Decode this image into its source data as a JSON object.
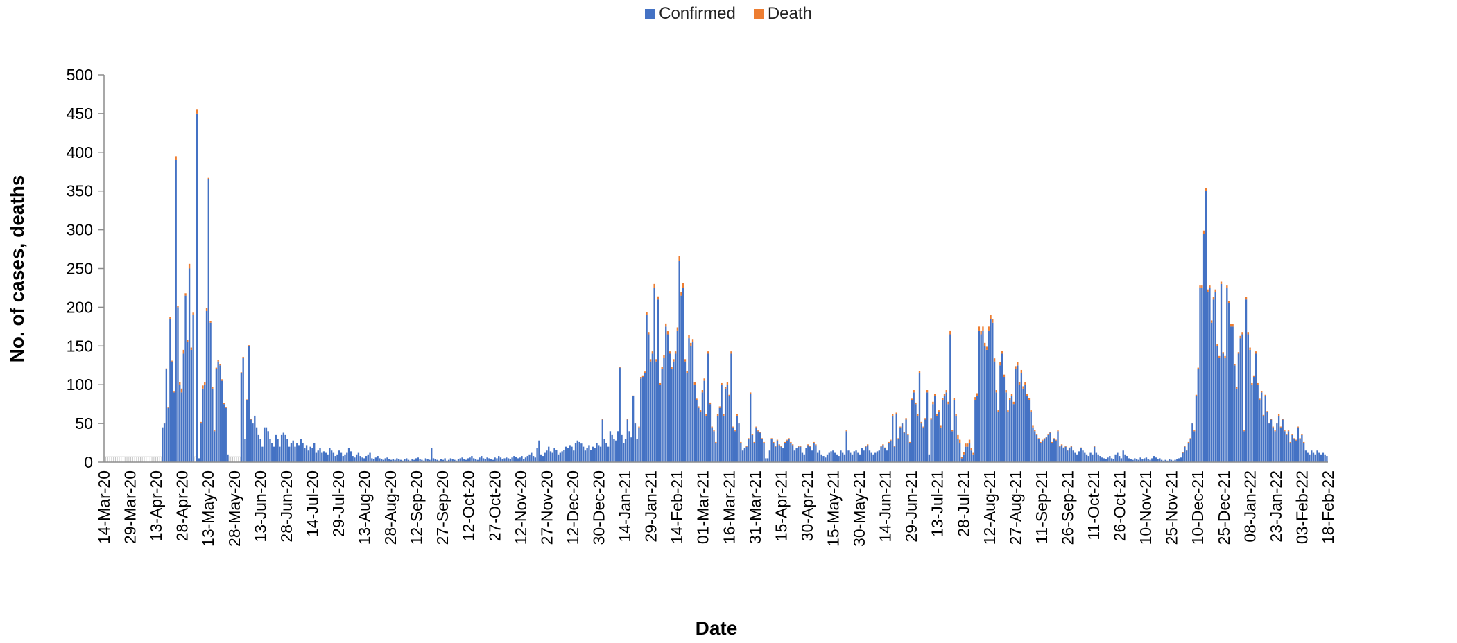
{
  "chart_data": {
    "type": "bar",
    "stacked": true,
    "xlabel": "Date",
    "ylabel": "No. of cases, deaths",
    "ylim": [
      0,
      500
    ],
    "yticks": [
      0,
      50,
      100,
      150,
      200,
      250,
      300,
      350,
      400,
      450,
      500
    ],
    "legend_position": "top-center",
    "grid": false,
    "series": [
      {
        "name": "Confirmed",
        "color": "#4472C4"
      },
      {
        "name": "Death",
        "color": "#ED7D31"
      }
    ],
    "x_tick_labels": [
      "14-Mar-20",
      "29-Mar-20",
      "13-Apr-20",
      "28-Apr-20",
      "13-May-20",
      "28-May-20",
      "13-Jun-20",
      "28-Jun-20",
      "14-Jul-20",
      "29-Jul-20",
      "13-Aug-20",
      "28-Aug-20",
      "12-Sep-20",
      "27-Sep-20",
      "12-Oct-20",
      "27-Oct-20",
      "12-Nov-20",
      "27-Nov-20",
      "12-Dec-20",
      "30-Dec-20",
      "14-Jan-21",
      "29-Jan-21",
      "14-Feb-21",
      "01-Mar-21",
      "16-Mar-21",
      "31-Mar-21",
      "15-Apr-21",
      "30-Apr-21",
      "15-May-21",
      "30-May-21",
      "14-Jun-21",
      "29-Jun-21",
      "13-Jul-21",
      "28-Jul-21",
      "12-Aug-21",
      "27-Aug-21",
      "11-Sep-21",
      "26-Sep-21",
      "11-Oct-21",
      "26-Oct-21",
      "10-Nov-21",
      "25-Nov-21",
      "10-Dec-21",
      "25-Dec-21",
      "08-Jan-22",
      "23-Jan-22",
      "03-Feb-22",
      "18-Feb-22"
    ],
    "daily_confirmed_estimated": [
      0,
      0,
      0,
      0,
      0,
      0,
      0,
      0,
      0,
      0,
      0,
      0,
      0,
      0,
      0,
      0,
      0,
      0,
      0,
      0,
      0,
      0,
      0,
      0,
      0,
      0,
      0,
      0,
      0,
      0,
      45,
      50,
      120,
      70,
      185,
      130,
      90,
      390,
      200,
      100,
      90,
      140,
      215,
      155,
      250,
      145,
      190,
      0,
      450,
      5,
      50,
      95,
      100,
      195,
      365,
      180,
      95,
      40,
      120,
      130,
      125,
      105,
      75,
      70,
      10,
      0,
      0,
      0,
      0,
      0,
      0,
      115,
      135,
      30,
      80,
      150,
      55,
      50,
      60,
      45,
      35,
      30,
      20,
      45,
      45,
      40,
      30,
      25,
      20,
      35,
      30,
      20,
      35,
      38,
      35,
      30,
      20,
      25,
      28,
      20,
      25,
      22,
      30,
      25,
      18,
      22,
      15,
      20,
      18,
      25,
      12,
      15,
      18,
      12,
      14,
      12,
      10,
      18,
      15,
      12,
      8,
      10,
      15,
      12,
      8,
      10,
      12,
      18,
      14,
      8,
      6,
      10,
      12,
      8,
      6,
      5,
      8,
      10,
      12,
      5,
      4,
      6,
      8,
      5,
      4,
      3,
      5,
      6,
      4,
      3,
      4,
      3,
      5,
      4,
      3,
      2,
      4,
      5,
      3,
      2,
      4,
      3,
      5,
      6,
      4,
      3,
      2,
      5,
      4,
      3,
      18,
      5,
      4,
      3,
      2,
      4,
      3,
      5,
      2,
      3,
      5,
      4,
      3,
      2,
      4,
      5,
      6,
      4,
      3,
      5,
      6,
      8,
      5,
      4,
      3,
      6,
      8,
      5,
      4,
      6,
      5,
      4,
      3,
      6,
      5,
      8,
      6,
      4,
      5,
      6,
      5,
      4,
      6,
      8,
      7,
      5,
      6,
      8,
      4,
      6,
      8,
      10,
      12,
      8,
      6,
      18,
      28,
      10,
      8,
      12,
      15,
      20,
      14,
      12,
      18,
      16,
      10,
      12,
      14,
      16,
      20,
      18,
      22,
      20,
      15,
      25,
      28,
      26,
      24,
      20,
      15,
      18,
      22,
      16,
      20,
      18,
      25,
      22,
      20,
      55,
      30,
      25,
      20,
      40,
      35,
      30,
      28,
      40,
      122,
      35,
      25,
      30,
      55,
      40,
      32,
      85,
      50,
      30,
      45,
      108,
      110,
      115,
      190,
      165,
      130,
      140,
      225,
      130,
      210,
      100,
      120,
      135,
      175,
      165,
      140,
      120,
      130,
      140,
      170,
      260,
      215,
      225,
      130,
      115,
      160,
      150,
      155,
      100,
      80,
      70,
      65,
      90,
      105,
      60,
      140,
      75,
      45,
      40,
      25,
      60,
      70,
      100,
      60,
      95,
      100,
      85,
      140,
      45,
      40,
      60,
      50,
      25,
      15,
      18,
      20,
      30,
      88,
      35,
      25,
      45,
      40,
      38,
      30,
      25,
      5,
      5,
      15,
      30,
      25,
      20,
      28,
      22,
      20,
      18,
      25,
      28,
      30,
      25,
      22,
      15,
      18,
      20,
      20,
      12,
      10,
      18,
      22,
      20,
      15,
      25,
      22,
      12,
      15,
      10,
      8,
      6,
      10,
      12,
      14,
      15,
      12,
      10,
      8,
      15,
      12,
      10,
      40,
      15,
      12,
      10,
      14,
      15,
      12,
      10,
      18,
      15,
      20,
      22,
      15,
      12,
      10,
      12,
      14,
      15,
      20,
      22,
      18,
      15,
      25,
      28,
      60,
      20,
      62,
      30,
      45,
      50,
      38,
      55,
      35,
      25,
      80,
      90,
      75,
      60,
      115,
      50,
      45,
      55,
      90,
      10,
      55,
      75,
      85,
      60,
      65,
      45,
      80,
      85,
      90,
      75,
      165,
      40,
      80,
      60,
      30,
      25,
      5,
      10,
      20,
      20,
      25,
      15,
      10,
      80,
      85,
      170,
      165,
      170,
      150,
      145,
      170,
      185,
      180,
      130,
      90,
      65,
      125,
      140,
      110,
      90,
      65,
      80,
      85,
      75,
      120,
      125,
      100,
      115,
      95,
      100,
      85,
      80,
      65,
      45,
      40,
      35,
      30,
      25,
      28,
      30,
      32,
      35,
      38,
      25,
      30,
      28,
      40,
      20,
      22,
      18,
      20,
      15,
      18,
      20,
      15,
      12,
      10,
      14,
      18,
      15,
      12,
      10,
      8,
      12,
      10,
      20,
      12,
      10,
      8,
      6,
      5,
      4,
      6,
      8,
      5,
      4,
      10,
      12,
      8,
      5,
      15,
      10,
      8,
      5,
      4,
      3,
      5,
      4,
      3,
      6,
      4,
      5,
      6,
      4,
      3,
      5,
      8,
      6,
      4,
      5,
      3,
      2,
      3,
      2,
      4,
      3,
      2,
      3,
      4,
      5,
      6,
      12,
      20,
      15,
      25,
      30,
      50,
      40,
      85,
      120,
      225,
      225,
      295,
      350,
      220,
      225,
      180,
      210,
      220,
      150,
      135,
      230,
      140,
      135,
      225,
      205,
      175,
      175,
      125,
      95,
      140,
      160,
      165,
      40,
      210,
      165,
      145,
      100,
      110,
      140,
      100,
      80,
      90,
      60,
      85,
      65,
      50,
      55,
      45,
      40,
      50,
      60,
      45,
      55,
      40,
      35,
      40,
      25,
      35,
      30,
      28,
      45,
      30,
      35,
      25,
      15,
      12,
      10,
      15,
      12,
      10,
      15,
      12,
      10,
      12,
      10,
      8
    ],
    "daily_death_estimated": [
      0,
      0,
      0,
      0,
      0,
      0,
      0,
      0,
      0,
      0,
      0,
      0,
      0,
      0,
      0,
      0,
      0,
      0,
      0,
      0,
      0,
      0,
      0,
      0,
      0,
      0,
      0,
      0,
      0,
      0,
      0,
      1,
      1,
      1,
      2,
      1,
      1,
      5,
      2,
      3,
      5,
      5,
      3,
      3,
      6,
      3,
      3,
      0,
      5,
      0,
      2,
      4,
      3,
      4,
      2,
      2,
      2,
      1,
      2,
      2,
      2,
      2,
      1,
      1,
      0,
      0,
      0,
      0,
      0,
      0,
      0,
      1,
      1,
      0,
      1,
      1,
      1,
      0,
      0,
      0,
      0,
      0,
      0,
      0,
      0,
      0,
      0,
      0,
      0,
      0,
      0,
      0,
      0,
      0,
      0,
      0,
      0,
      0,
      0,
      0,
      0,
      0,
      0,
      0,
      0,
      0,
      0,
      0,
      0,
      0,
      0,
      0,
      0,
      0,
      0,
      0,
      0,
      0,
      0,
      0,
      0,
      0,
      0,
      0,
      0,
      0,
      0,
      0,
      0,
      0,
      0,
      0,
      0,
      0,
      0,
      0,
      0,
      0,
      0,
      0,
      0,
      0,
      0,
      0,
      0,
      0,
      0,
      0,
      0,
      0,
      0,
      0,
      0,
      0,
      0,
      0,
      0,
      0,
      0,
      0,
      0,
      0,
      0,
      0,
      0,
      0,
      0,
      0,
      0,
      0,
      0,
      0,
      0,
      0,
      0,
      0,
      0,
      0,
      0,
      0,
      0,
      0,
      0,
      0,
      0,
      0,
      0,
      0,
      0,
      0,
      0,
      0,
      0,
      0,
      0,
      0,
      0,
      0,
      0,
      0,
      0,
      0,
      0,
      0,
      0,
      0,
      0,
      0,
      0,
      0,
      0,
      0,
      0,
      0,
      0,
      0,
      0,
      0,
      0,
      0,
      0,
      0,
      0,
      0,
      0,
      0,
      0,
      0,
      0,
      0,
      0,
      0,
      0,
      0,
      0,
      0,
      0,
      0,
      0,
      0,
      0,
      0,
      0,
      0,
      0,
      0,
      0,
      0,
      0,
      0,
      0,
      0,
      0,
      0,
      0,
      0,
      0,
      0,
      0,
      1,
      0,
      0,
      0,
      0,
      0,
      0,
      0,
      0,
      1,
      0,
      0,
      0,
      1,
      0,
      0,
      1,
      1,
      0,
      1,
      2,
      2,
      2,
      4,
      3,
      3,
      3,
      5,
      3,
      4,
      2,
      3,
      3,
      4,
      4,
      3,
      3,
      3,
      3,
      4,
      6,
      5,
      6,
      3,
      3,
      4,
      4,
      4,
      3,
      2,
      2,
      2,
      3,
      3,
      2,
      3,
      2,
      1,
      1,
      1,
      2,
      2,
      2,
      2,
      2,
      3,
      2,
      3,
      1,
      1,
      2,
      1,
      1,
      0,
      0,
      1,
      1,
      2,
      1,
      1,
      1,
      1,
      1,
      1,
      1,
      0,
      0,
      0,
      1,
      1,
      1,
      1,
      1,
      1,
      0,
      1,
      1,
      1,
      1,
      1,
      0,
      0,
      1,
      1,
      0,
      0,
      0,
      1,
      1,
      0,
      1,
      1,
      0,
      0,
      0,
      0,
      0,
      0,
      0,
      0,
      0,
      0,
      0,
      0,
      0,
      0,
      0,
      1,
      0,
      0,
      0,
      0,
      0,
      0,
      0,
      0,
      0,
      1,
      1,
      0,
      0,
      0,
      0,
      0,
      0,
      1,
      1,
      1,
      0,
      1,
      1,
      2,
      1,
      2,
      1,
      1,
      1,
      1,
      2,
      1,
      1,
      2,
      3,
      2,
      2,
      3,
      2,
      1,
      2,
      3,
      0,
      2,
      3,
      3,
      2,
      2,
      2,
      3,
      3,
      3,
      3,
      5,
      2,
      3,
      2,
      5,
      4,
      2,
      3,
      4,
      4,
      4,
      3,
      2,
      4,
      4,
      5,
      5,
      5,
      4,
      4,
      5,
      5,
      5,
      4,
      3,
      2,
      4,
      4,
      3,
      3,
      2,
      3,
      3,
      3,
      4,
      4,
      3,
      4,
      3,
      3,
      3,
      3,
      2,
      2,
      2,
      1,
      1,
      1,
      1,
      1,
      1,
      1,
      1,
      1,
      1,
      1,
      1,
      1,
      1,
      1,
      1,
      1,
      1,
      1,
      0,
      0,
      0,
      0,
      1,
      0,
      0,
      0,
      0,
      0,
      0,
      1,
      0,
      0,
      0,
      0,
      0,
      0,
      0,
      0,
      0,
      0,
      0,
      0,
      0,
      0,
      0,
      0,
      0,
      0,
      0,
      0,
      0,
      0,
      0,
      0,
      0,
      0,
      0,
      0,
      0,
      0,
      0,
      0,
      0,
      0,
      0,
      0,
      0,
      0,
      0,
      0,
      0,
      0,
      0,
      0,
      0,
      1,
      1,
      1,
      1,
      1,
      1,
      1,
      2,
      2,
      3,
      3,
      4,
      4,
      3,
      3,
      3,
      3,
      3,
      2,
      2,
      3,
      2,
      2,
      3,
      3,
      3,
      3,
      2,
      2,
      2,
      3,
      3,
      1,
      3,
      3,
      3,
      2,
      2,
      3,
      2,
      2,
      2,
      1,
      2,
      1,
      1,
      1,
      1,
      1,
      1,
      2,
      1,
      1,
      1,
      1,
      1,
      1,
      1,
      1,
      1,
      1,
      1,
      1,
      1,
      0,
      0,
      0,
      0,
      0,
      0,
      0,
      0,
      0,
      0,
      0,
      0
    ]
  }
}
